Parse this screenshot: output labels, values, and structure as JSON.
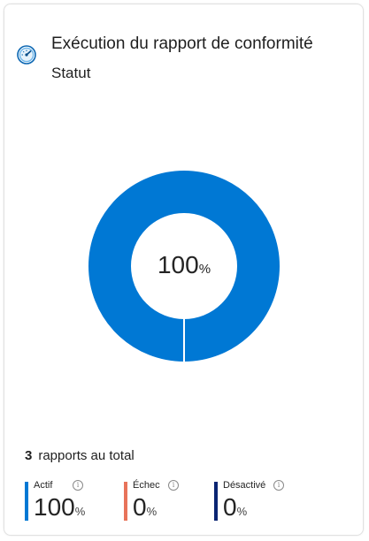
{
  "card": {
    "title": "Exécution du rapport de conformité",
    "subtitle": "Statut",
    "icon": "gauge-icon"
  },
  "donut": {
    "percent_value": "100",
    "percent_unit": "%",
    "fraction_active": 1.0,
    "color": "#0078d4"
  },
  "summary": {
    "count": "3",
    "label": "rapports au total"
  },
  "stats": [
    {
      "label": "Actif",
      "value": "100",
      "unit": "%",
      "color": "#0078d4",
      "info_icon": "info-icon"
    },
    {
      "label": "Échec",
      "value": "0",
      "unit": "%",
      "color": "#e8735a",
      "info_icon": "info-icon"
    },
    {
      "label": "Désactivé",
      "value": "0",
      "unit": "%",
      "color": "#0a2472",
      "info_icon": "info-icon"
    }
  ]
}
